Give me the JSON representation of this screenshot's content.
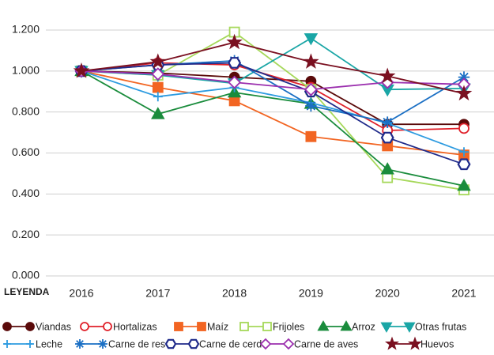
{
  "chart_data": {
    "type": "line",
    "categories": [
      "2016",
      "2017",
      "2018",
      "2019",
      "2020",
      "2021"
    ],
    "ylim": [
      0,
      1.2
    ],
    "yticks": [
      {
        "value": 0,
        "label": "0.000"
      },
      {
        "value": 0.2,
        "label": "0.200"
      },
      {
        "value": 0.4,
        "label": "0.400"
      },
      {
        "value": 0.6,
        "label": "0.600"
      },
      {
        "value": 0.8,
        "label": "0.800"
      },
      {
        "value": 1.0,
        "label": "1.000"
      },
      {
        "value": 1.2,
        "label": "1.200"
      }
    ],
    "grid": true,
    "legend_title": "LEYENDA",
    "series": [
      {
        "name": "Viandas",
        "color": "#5a0a0a",
        "marker": "circle",
        "values": [
          1.0,
          0.99,
          0.97,
          0.95,
          0.74,
          0.74
        ]
      },
      {
        "name": "Hortalizas",
        "color": "#e0202a",
        "marker": "circle-open",
        "values": [
          1.0,
          1.04,
          1.03,
          0.92,
          0.71,
          0.72
        ]
      },
      {
        "name": "Maíz",
        "color": "#f26522",
        "marker": "square",
        "values": [
          1.0,
          0.92,
          0.855,
          0.68,
          0.635,
          0.59
        ]
      },
      {
        "name": "Frijoles",
        "color": "#a6d85a",
        "marker": "square-open",
        "values": [
          1.0,
          0.98,
          1.19,
          0.91,
          0.48,
          0.42
        ]
      },
      {
        "name": "Arroz",
        "color": "#1a8c3c",
        "marker": "triangle",
        "values": [
          1.0,
          0.79,
          0.895,
          0.84,
          0.52,
          0.44
        ]
      },
      {
        "name": "Otras frutas",
        "color": "#1aa6a6",
        "marker": "triangle-down",
        "values": [
          1.0,
          0.98,
          0.94,
          1.16,
          0.91,
          0.915
        ]
      },
      {
        "name": "Leche",
        "color": "#2d9be0",
        "marker": "bar",
        "values": [
          1.0,
          0.875,
          0.92,
          0.845,
          0.745,
          0.605
        ]
      },
      {
        "name": "Carne de res",
        "color": "#1a6fc4",
        "marker": "asterisk",
        "values": [
          1.0,
          1.03,
          1.05,
          0.83,
          0.75,
          0.97
        ]
      },
      {
        "name": "Carne de cerdo",
        "color": "#1f2a8a",
        "marker": "hexagon-open",
        "values": [
          1.0,
          1.03,
          1.04,
          0.9,
          0.675,
          0.545
        ]
      },
      {
        "name": "Carne de aves",
        "color": "#9b2fae",
        "marker": "diamond-open",
        "values": [
          1.0,
          0.985,
          0.945,
          0.91,
          0.945,
          0.935
        ]
      },
      {
        "name": "Huevos",
        "color": "#7a1020",
        "marker": "star",
        "values": [
          1.0,
          1.045,
          1.14,
          1.045,
          0.975,
          0.89
        ]
      }
    ]
  }
}
